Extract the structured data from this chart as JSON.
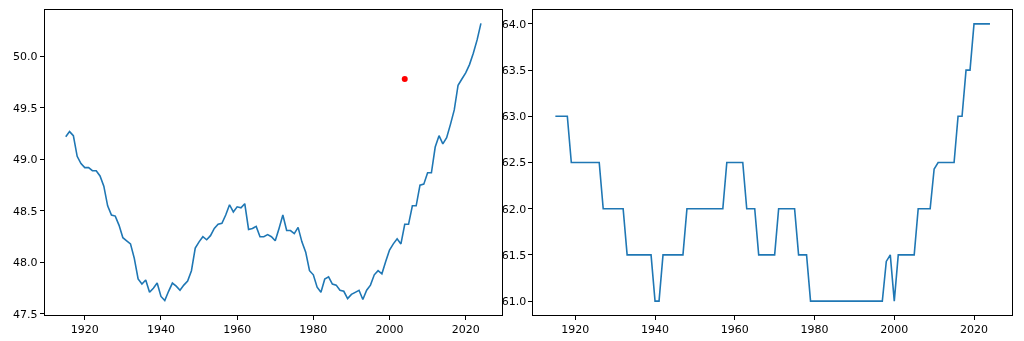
{
  "chart_data": [
    {
      "type": "line",
      "x": [
        1915,
        1916,
        1917,
        1918,
        1919,
        1920,
        1921,
        1922,
        1923,
        1924,
        1925,
        1926,
        1927,
        1928,
        1929,
        1930,
        1931,
        1932,
        1933,
        1934,
        1935,
        1936,
        1937,
        1938,
        1939,
        1940,
        1941,
        1942,
        1943,
        1944,
        1945,
        1946,
        1947,
        1948,
        1949,
        1950,
        1951,
        1952,
        1953,
        1954,
        1955,
        1956,
        1957,
        1958,
        1959,
        1960,
        1961,
        1962,
        1963,
        1964,
        1965,
        1966,
        1967,
        1968,
        1969,
        1970,
        1971,
        1972,
        1973,
        1974,
        1975,
        1976,
        1977,
        1978,
        1979,
        1980,
        1981,
        1982,
        1983,
        1984,
        1985,
        1986,
        1987,
        1988,
        1989,
        1990,
        1991,
        1992,
        1993,
        1994,
        1995,
        1996,
        1997,
        1998,
        1999,
        2000,
        2001,
        2002,
        2003,
        2004,
        2005,
        2006,
        2007,
        2008,
        2009,
        2010,
        2011,
        2012,
        2013,
        2014,
        2015,
        2016,
        2017,
        2018,
        2019,
        2020,
        2021,
        2022,
        2023,
        2024
      ],
      "series": [
        {
          "color": "#1f77b4",
          "marker": "none",
          "values": [
            49.22,
            49.27,
            49.23,
            49.03,
            48.96,
            48.92,
            48.92,
            48.89,
            48.89,
            48.84,
            48.74,
            48.55,
            48.46,
            48.45,
            48.36,
            48.24,
            48.21,
            48.18,
            48.04,
            47.84,
            47.79,
            47.83,
            47.71,
            47.75,
            47.8,
            47.67,
            47.63,
            47.72,
            47.8,
            47.77,
            47.73,
            47.78,
            47.82,
            47.92,
            48.14,
            48.2,
            48.25,
            48.22,
            48.26,
            48.33,
            48.37,
            48.38,
            48.46,
            48.56,
            48.49,
            48.54,
            48.53,
            48.57,
            48.32,
            48.33,
            48.35,
            48.25,
            48.25,
            48.27,
            48.25,
            48.21,
            48.33,
            48.46,
            48.31,
            48.31,
            48.28,
            48.34,
            48.2,
            48.1,
            47.92,
            47.88,
            47.76,
            47.71,
            47.84,
            47.86,
            47.79,
            47.78,
            47.73,
            47.72,
            47.65,
            47.69,
            47.71,
            47.73,
            47.64,
            47.73,
            47.78,
            47.88,
            47.92,
            47.89,
            48.01,
            48.12,
            48.18,
            48.23,
            48.18,
            48.37,
            48.37,
            48.55,
            48.55,
            48.75,
            48.76,
            48.87,
            48.87,
            49.12,
            49.23,
            49.15,
            49.21,
            49.34,
            49.48,
            49.72,
            49.78,
            49.84,
            49.92,
            50.03,
            50.16,
            50.32
          ]
        },
        {
          "type": "scatter",
          "color": "#ff0000",
          "marker": "circle",
          "x": [
            2004
          ],
          "values": [
            49.78
          ]
        }
      ],
      "xlim": [
        1909.5,
        2029.5
      ],
      "xticks": [
        1920,
        1940,
        1960,
        1980,
        2000,
        2020
      ],
      "ylim": [
        47.49,
        50.45
      ],
      "yticks": [
        {
          "value": 47.5,
          "label": "47.5"
        },
        {
          "value": 48,
          "label": "48.0"
        },
        {
          "value": 48.5,
          "label": "48.5"
        },
        {
          "value": 49,
          "label": "49.0"
        },
        {
          "value": 49.5,
          "label": "49.5"
        },
        {
          "value": 50,
          "label": "50.0"
        }
      ]
    },
    {
      "type": "line",
      "x": [
        1915,
        1916,
        1917,
        1918,
        1919,
        1920,
        1921,
        1922,
        1923,
        1924,
        1925,
        1926,
        1927,
        1928,
        1929,
        1930,
        1931,
        1932,
        1933,
        1934,
        1935,
        1936,
        1937,
        1938,
        1939,
        1940,
        1941,
        1942,
        1943,
        1944,
        1945,
        1946,
        1947,
        1948,
        1949,
        1950,
        1951,
        1952,
        1953,
        1954,
        1955,
        1956,
        1957,
        1958,
        1959,
        1960,
        1961,
        1962,
        1963,
        1964,
        1965,
        1966,
        1967,
        1968,
        1969,
        1970,
        1971,
        1972,
        1973,
        1974,
        1975,
        1976,
        1977,
        1978,
        1979,
        1980,
        1981,
        1982,
        1983,
        1984,
        1985,
        1986,
        1987,
        1988,
        1989,
        1990,
        1991,
        1992,
        1993,
        1994,
        1995,
        1996,
        1997,
        1998,
        1999,
        2000,
        2001,
        2002,
        2003,
        2004,
        2005,
        2006,
        2007,
        2008,
        2009,
        2010,
        2011,
        2012,
        2013,
        2014,
        2015,
        2016,
        2017,
        2018,
        2019,
        2020,
        2021,
        2022,
        2023,
        2024
      ],
      "series": [
        {
          "color": "#1f77b4",
          "marker": "none",
          "values": [
            63.0,
            63.0,
            63.0,
            63.0,
            62.5,
            62.5,
            62.5,
            62.5,
            62.5,
            62.5,
            62.5,
            62.5,
            62.0,
            62.0,
            62.0,
            62.0,
            62.0,
            62.0,
            61.5,
            61.5,
            61.5,
            61.5,
            61.5,
            61.5,
            61.5,
            61.0,
            61.0,
            61.5,
            61.5,
            61.5,
            61.5,
            61.5,
            61.5,
            62.0,
            62.0,
            62.0,
            62.0,
            62.0,
            62.0,
            62.0,
            62.0,
            62.0,
            62.0,
            62.5,
            62.5,
            62.5,
            62.5,
            62.5,
            62.0,
            62.0,
            62.0,
            61.5,
            61.5,
            61.5,
            61.5,
            61.5,
            62.0,
            62.0,
            62.0,
            62.0,
            62.0,
            61.5,
            61.5,
            61.5,
            61.0,
            61.0,
            61.0,
            61.0,
            61.0,
            61.0,
            61.0,
            61.0,
            61.0,
            61.0,
            61.0,
            61.0,
            61.0,
            61.0,
            61.0,
            61.0,
            61.0,
            61.0,
            61.0,
            61.43,
            61.5,
            61.0,
            61.5,
            61.5,
            61.5,
            61.5,
            61.5,
            62.0,
            62.0,
            62.0,
            62.0,
            62.43,
            62.5,
            62.5,
            62.5,
            62.5,
            62.5,
            63.0,
            63.0,
            63.5,
            63.5,
            64.0,
            64.0,
            64.0,
            64.0,
            64.0
          ]
        }
      ],
      "xlim": [
        1909.5,
        2029.5
      ],
      "xticks": [
        1920,
        1940,
        1960,
        1980,
        2000,
        2020
      ],
      "ylim": [
        60.85,
        64.15
      ],
      "yticks": [
        {
          "value": 61,
          "label": "61.0"
        },
        {
          "value": 61.5,
          "label": "61.5"
        },
        {
          "value": 62,
          "label": "62.0"
        },
        {
          "value": 62.5,
          "label": "62.5"
        },
        {
          "value": 63,
          "label": "63.0"
        },
        {
          "value": 63.5,
          "label": "63.5"
        },
        {
          "value": 64,
          "label": "64.0"
        }
      ]
    }
  ]
}
